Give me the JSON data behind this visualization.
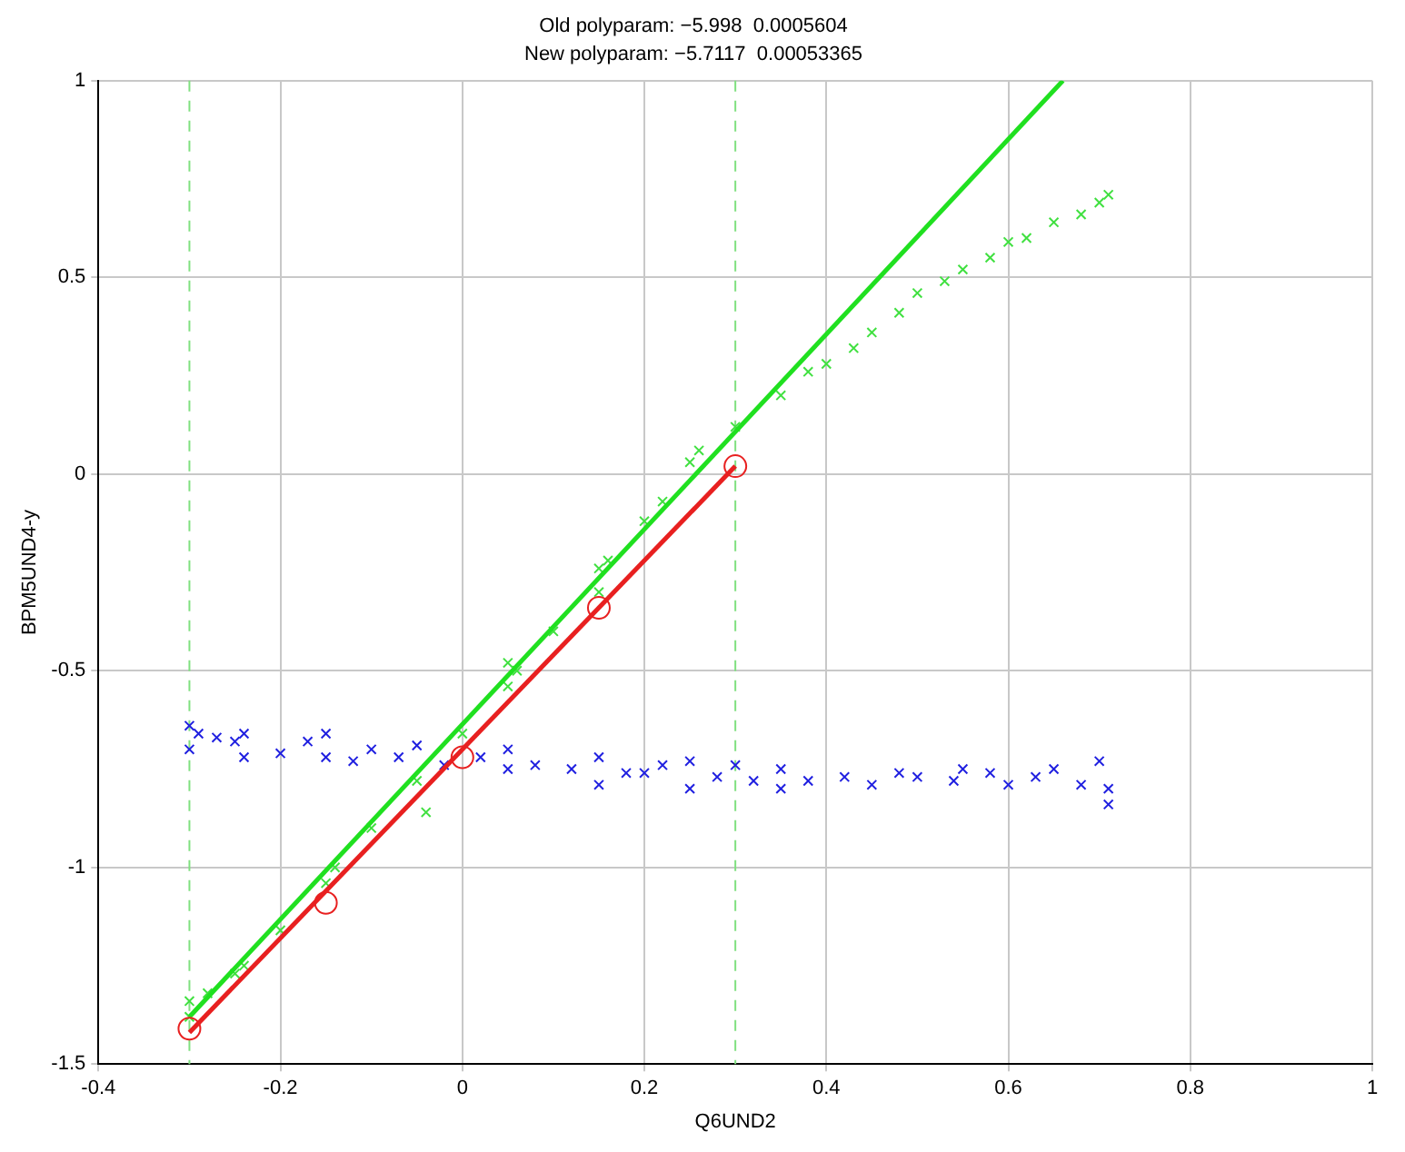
{
  "chart_data": {
    "type": "scatter",
    "title": "Old polyparam: −5.998  0.0005604",
    "subtitle": "New polyparam: −5.7117  0.00053365",
    "xlabel": "Q6UND2",
    "ylabel": "BPM5UND4-y",
    "xlim": [
      -0.4,
      1
    ],
    "xticks": [
      -0.4,
      -0.2,
      0,
      0.2,
      0.4,
      0.6,
      0.8,
      1
    ],
    "ylim": [
      -1.5,
      1
    ],
    "yticks": [
      -1.5,
      -1,
      -0.5,
      0,
      0.5,
      1
    ],
    "grid": true,
    "ref_lines": [
      {
        "axis": "x",
        "value": -0.3,
        "color": "#80e080",
        "line_style": "dashed"
      },
      {
        "axis": "x",
        "value": 0.3,
        "color": "#80e080",
        "line_style": "dashed"
      }
    ],
    "series": [
      {
        "type": "scatter",
        "marker": "cross",
        "color": "#2020e0",
        "x": [
          -0.3,
          -0.3,
          -0.29,
          -0.27,
          -0.25,
          -0.24,
          -0.24,
          -0.2,
          -0.17,
          -0.15,
          -0.15,
          -0.12,
          -0.1,
          -0.07,
          -0.05,
          -0.02,
          0.02,
          0.05,
          0.05,
          0.08,
          0.12,
          0.15,
          0.15,
          0.18,
          0.2,
          0.22,
          0.25,
          0.25,
          0.28,
          0.3,
          0.32,
          0.35,
          0.35,
          0.38,
          0.42,
          0.45,
          0.48,
          0.5,
          0.54,
          0.55,
          0.58,
          0.6,
          0.63,
          0.65,
          0.68,
          0.7,
          0.71,
          0.71
        ],
        "values": [
          -0.64,
          -0.7,
          -0.66,
          -0.67,
          -0.68,
          -0.66,
          -0.72,
          -0.71,
          -0.68,
          -0.66,
          -0.72,
          -0.73,
          -0.7,
          -0.72,
          -0.69,
          -0.74,
          -0.72,
          -0.7,
          -0.75,
          -0.74,
          -0.75,
          -0.72,
          -0.79,
          -0.76,
          -0.76,
          -0.74,
          -0.73,
          -0.8,
          -0.77,
          -0.74,
          -0.78,
          -0.75,
          -0.8,
          -0.78,
          -0.77,
          -0.79,
          -0.76,
          -0.77,
          -0.78,
          -0.75,
          -0.76,
          -0.79,
          -0.77,
          -0.75,
          -0.79,
          -0.73,
          -0.8,
          -0.84
        ]
      },
      {
        "type": "scatter",
        "marker": "cross",
        "color": "#40e040",
        "x": [
          -0.3,
          -0.3,
          -0.28,
          -0.25,
          -0.24,
          -0.2,
          -0.15,
          -0.14,
          -0.1,
          -0.05,
          -0.04,
          0,
          0.05,
          0.05,
          0.06,
          0.1,
          0.15,
          0.15,
          0.16,
          0.2,
          0.22,
          0.25,
          0.26,
          0.3,
          0.35,
          0.38,
          0.4,
          0.43,
          0.45,
          0.48,
          0.5,
          0.53,
          0.55,
          0.58,
          0.6,
          0.62,
          0.65,
          0.68,
          0.7,
          0.71
        ],
        "values": [
          -1.38,
          -1.34,
          -1.32,
          -1.27,
          -1.25,
          -1.16,
          -1.04,
          -1.0,
          -0.9,
          -0.78,
          -0.86,
          -0.66,
          -0.54,
          -0.48,
          -0.5,
          -0.4,
          -0.3,
          -0.24,
          -0.22,
          -0.12,
          -0.07,
          0.03,
          0.06,
          0.12,
          0.2,
          0.26,
          0.28,
          0.32,
          0.36,
          0.41,
          0.46,
          0.49,
          0.52,
          0.55,
          0.59,
          0.6,
          0.64,
          0.66,
          0.69,
          0.71
        ]
      },
      {
        "type": "line",
        "color": "#20e020",
        "line_style": "solid",
        "x": [
          -0.3,
          0.66
        ],
        "values": [
          -1.38,
          1.0
        ]
      },
      {
        "type": "line",
        "color": "#e82020",
        "line_style": "solid",
        "x": [
          -0.3,
          0.3
        ],
        "values": [
          -1.42,
          0.02
        ]
      },
      {
        "type": "scatter",
        "marker": "circle",
        "color": "#e82020",
        "x": [
          -0.3,
          -0.15,
          0,
          0.15,
          0.3
        ],
        "values": [
          -1.41,
          -1.09,
          -0.72,
          -0.34,
          0.02
        ]
      }
    ]
  }
}
